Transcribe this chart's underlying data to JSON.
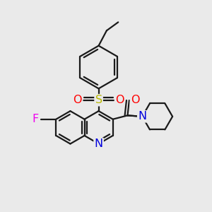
{
  "background_color": "#eaeaea",
  "bond_color": "#1a1a1a",
  "bond_width": 1.6,
  "atom_colors": {
    "S": "#b8b800",
    "O": "#ff0000",
    "N_q": "#0000dd",
    "N_p": "#0000dd",
    "F": "#ee00ee"
  },
  "fs": 11.5
}
